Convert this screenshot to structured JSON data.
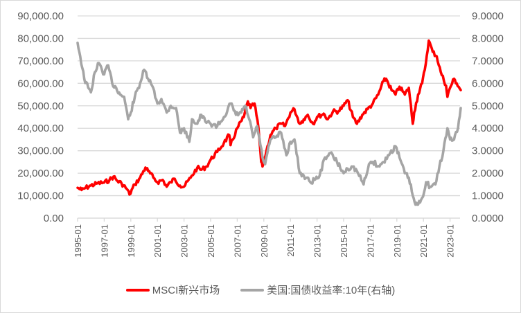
{
  "chart_data": {
    "type": "line",
    "title": "",
    "xlabel": "",
    "ylabel_left": "",
    "ylabel_right": "",
    "x_tick_labels": [
      "1995-01",
      "1997-01",
      "1999-01",
      "2001-01",
      "2003-01",
      "2005-01",
      "2007-01",
      "2009-01",
      "2011-01",
      "2013-01",
      "2015-01",
      "2017-01",
      "2019-01",
      "2021-01",
      "2023-01"
    ],
    "left_axis": {
      "ylim": [
        0,
        90000
      ],
      "tick_labels": [
        "0.00",
        "10,000.00",
        "20,000.00",
        "30,000.00",
        "40,000.00",
        "50,000.00",
        "60,000.00",
        "70,000.00",
        "80,000.00",
        "90,000.00"
      ]
    },
    "right_axis": {
      "ylim": [
        0,
        9
      ],
      "tick_labels": [
        "0.0000",
        "1.0000",
        "2.0000",
        "3.0000",
        "4.0000",
        "5.0000",
        "6.0000",
        "7.0000",
        "8.0000",
        "9.0000"
      ]
    },
    "grid": true,
    "legend_position": "bottom",
    "series": [
      {
        "name": "MSCI新兴市场",
        "axis": "left",
        "color": "#ff0000",
        "x": [
          1995.0,
          1995.3,
          1995.6,
          1996.0,
          1996.5,
          1997.0,
          1997.4,
          1997.7,
          1998.0,
          1998.3,
          1998.7,
          1998.9,
          1999.3,
          1999.7,
          2000.1,
          2000.3,
          2000.7,
          2001.0,
          2001.4,
          2001.7,
          2002.0,
          2002.3,
          2002.7,
          2003.0,
          2003.5,
          2004.0,
          2004.3,
          2004.7,
          2005.0,
          2005.5,
          2006.0,
          2006.4,
          2006.5,
          2007.0,
          2007.5,
          2007.8,
          2008.0,
          2008.3,
          2008.6,
          2008.8,
          2008.9,
          2009.2,
          2009.5,
          2009.9,
          2010.3,
          2010.6,
          2011.0,
          2011.3,
          2011.7,
          2012.0,
          2012.3,
          2012.7,
          2013.0,
          2013.5,
          2013.8,
          2014.2,
          2014.6,
          2015.0,
          2015.3,
          2015.7,
          2016.0,
          2016.4,
          2016.8,
          2017.2,
          2017.6,
          2018.0,
          2018.2,
          2018.6,
          2018.9,
          2019.2,
          2019.6,
          2019.9,
          2020.2,
          2020.3,
          2020.6,
          2020.9,
          2021.1,
          2021.4,
          2021.7,
          2022.0,
          2022.3,
          2022.7,
          2022.8,
          2023.0,
          2023.3,
          2023.5,
          2023.8
        ],
        "values": [
          13500,
          12500,
          13500,
          14500,
          15500,
          15800,
          17000,
          18500,
          16500,
          15500,
          13000,
          10500,
          15000,
          18000,
          22500,
          21000,
          18000,
          16000,
          17000,
          14000,
          16000,
          17500,
          14500,
          14000,
          18000,
          22500,
          21500,
          23000,
          26000,
          29500,
          33500,
          37000,
          32500,
          40000,
          45000,
          52000,
          49000,
          51000,
          40000,
          25000,
          23000,
          30000,
          37000,
          40000,
          42000,
          41000,
          47000,
          48500,
          42000,
          44000,
          46000,
          42000,
          45000,
          46500,
          44000,
          47500,
          47500,
          50000,
          52500,
          45000,
          42000,
          46000,
          48500,
          51000,
          55000,
          61000,
          62000,
          57000,
          55000,
          58500,
          55000,
          58000,
          42000,
          47000,
          55000,
          60000,
          66000,
          79000,
          74000,
          72000,
          65000,
          59000,
          54000,
          58000,
          62000,
          60000,
          57000
        ]
      },
      {
        "name": "美国:国债收益率:10年(右轴)",
        "axis": "right",
        "color": "#a5a5a5",
        "x": [
          1995.0,
          1995.2,
          1995.5,
          1995.8,
          1996.0,
          1996.3,
          1996.6,
          1997.0,
          1997.3,
          1997.6,
          1997.9,
          1998.2,
          1998.5,
          1998.8,
          1999.0,
          1999.3,
          1999.7,
          2000.0,
          2000.3,
          2000.6,
          2001.0,
          2001.3,
          2001.7,
          2002.0,
          2002.4,
          2002.7,
          2003.0,
          2003.4,
          2003.6,
          2004.0,
          2004.3,
          2004.6,
          2005.0,
          2005.5,
          2006.0,
          2006.5,
          2006.9,
          2007.3,
          2007.6,
          2007.9,
          2008.2,
          2008.5,
          2008.9,
          2009.1,
          2009.5,
          2009.9,
          2010.3,
          2010.7,
          2011.0,
          2011.3,
          2011.7,
          2012.0,
          2012.5,
          2012.8,
          2013.2,
          2013.6,
          2014.0,
          2014.5,
          2015.0,
          2015.3,
          2015.6,
          2016.0,
          2016.5,
          2016.9,
          2017.2,
          2017.7,
          2018.0,
          2018.5,
          2018.9,
          2019.2,
          2019.6,
          2019.9,
          2020.2,
          2020.4,
          2020.6,
          2020.9,
          2021.2,
          2021.5,
          2021.9,
          2022.2,
          2022.5,
          2022.8,
          2023.0,
          2023.3,
          2023.6,
          2023.8
        ],
        "values": [
          7.8,
          7.2,
          6.2,
          5.8,
          5.6,
          6.5,
          6.9,
          6.4,
          6.8,
          6.0,
          5.8,
          5.5,
          5.4,
          4.4,
          4.7,
          5.4,
          6.0,
          6.6,
          6.2,
          5.9,
          5.1,
          5.3,
          4.7,
          5.0,
          4.9,
          3.8,
          4.0,
          3.4,
          4.4,
          4.2,
          4.6,
          4.3,
          4.2,
          4.1,
          4.5,
          5.1,
          4.6,
          4.7,
          5.0,
          4.4,
          3.6,
          4.1,
          2.7,
          2.4,
          3.5,
          3.6,
          3.8,
          2.8,
          3.4,
          3.5,
          2.0,
          1.9,
          1.6,
          1.7,
          1.9,
          2.7,
          2.9,
          2.5,
          2.0,
          2.2,
          2.3,
          2.1,
          1.5,
          2.4,
          2.5,
          2.3,
          2.5,
          2.9,
          3.2,
          2.7,
          2.0,
          1.8,
          1.0,
          0.6,
          0.6,
          0.9,
          1.6,
          1.4,
          1.5,
          2.3,
          3.0,
          4.0,
          3.5,
          3.5,
          4.0,
          4.9
        ]
      }
    ]
  },
  "legend": {
    "items": [
      {
        "label": "MSCI新兴市场",
        "color": "#ff0000"
      },
      {
        "label": "美国:国债收益率:10年(右轴)",
        "color": "#a5a5a5"
      }
    ]
  }
}
